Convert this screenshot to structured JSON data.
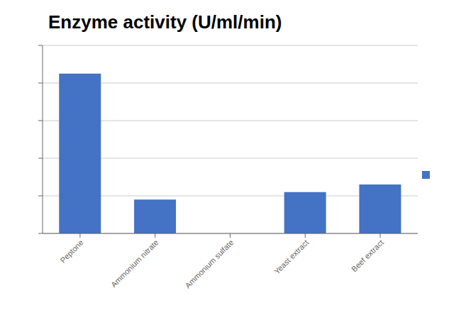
{
  "chart_data": {
    "type": "bar",
    "title": "Enzyme activity (U/ml/min)",
    "categories": [
      "Peptone",
      "Ammonium nitrate",
      "Ammonium sulfate",
      "Yeast extract",
      "Beef extract"
    ],
    "values": [
      0.85,
      0.18,
      0.0,
      0.22,
      0.26
    ],
    "color": "#4472C4",
    "ylim": [
      0,
      1.0
    ],
    "yticks": [
      0.0,
      0.2,
      0.4,
      0.6,
      0.8,
      1.0
    ],
    "grid": true,
    "tick_labels": "x",
    "legend": "right"
  }
}
